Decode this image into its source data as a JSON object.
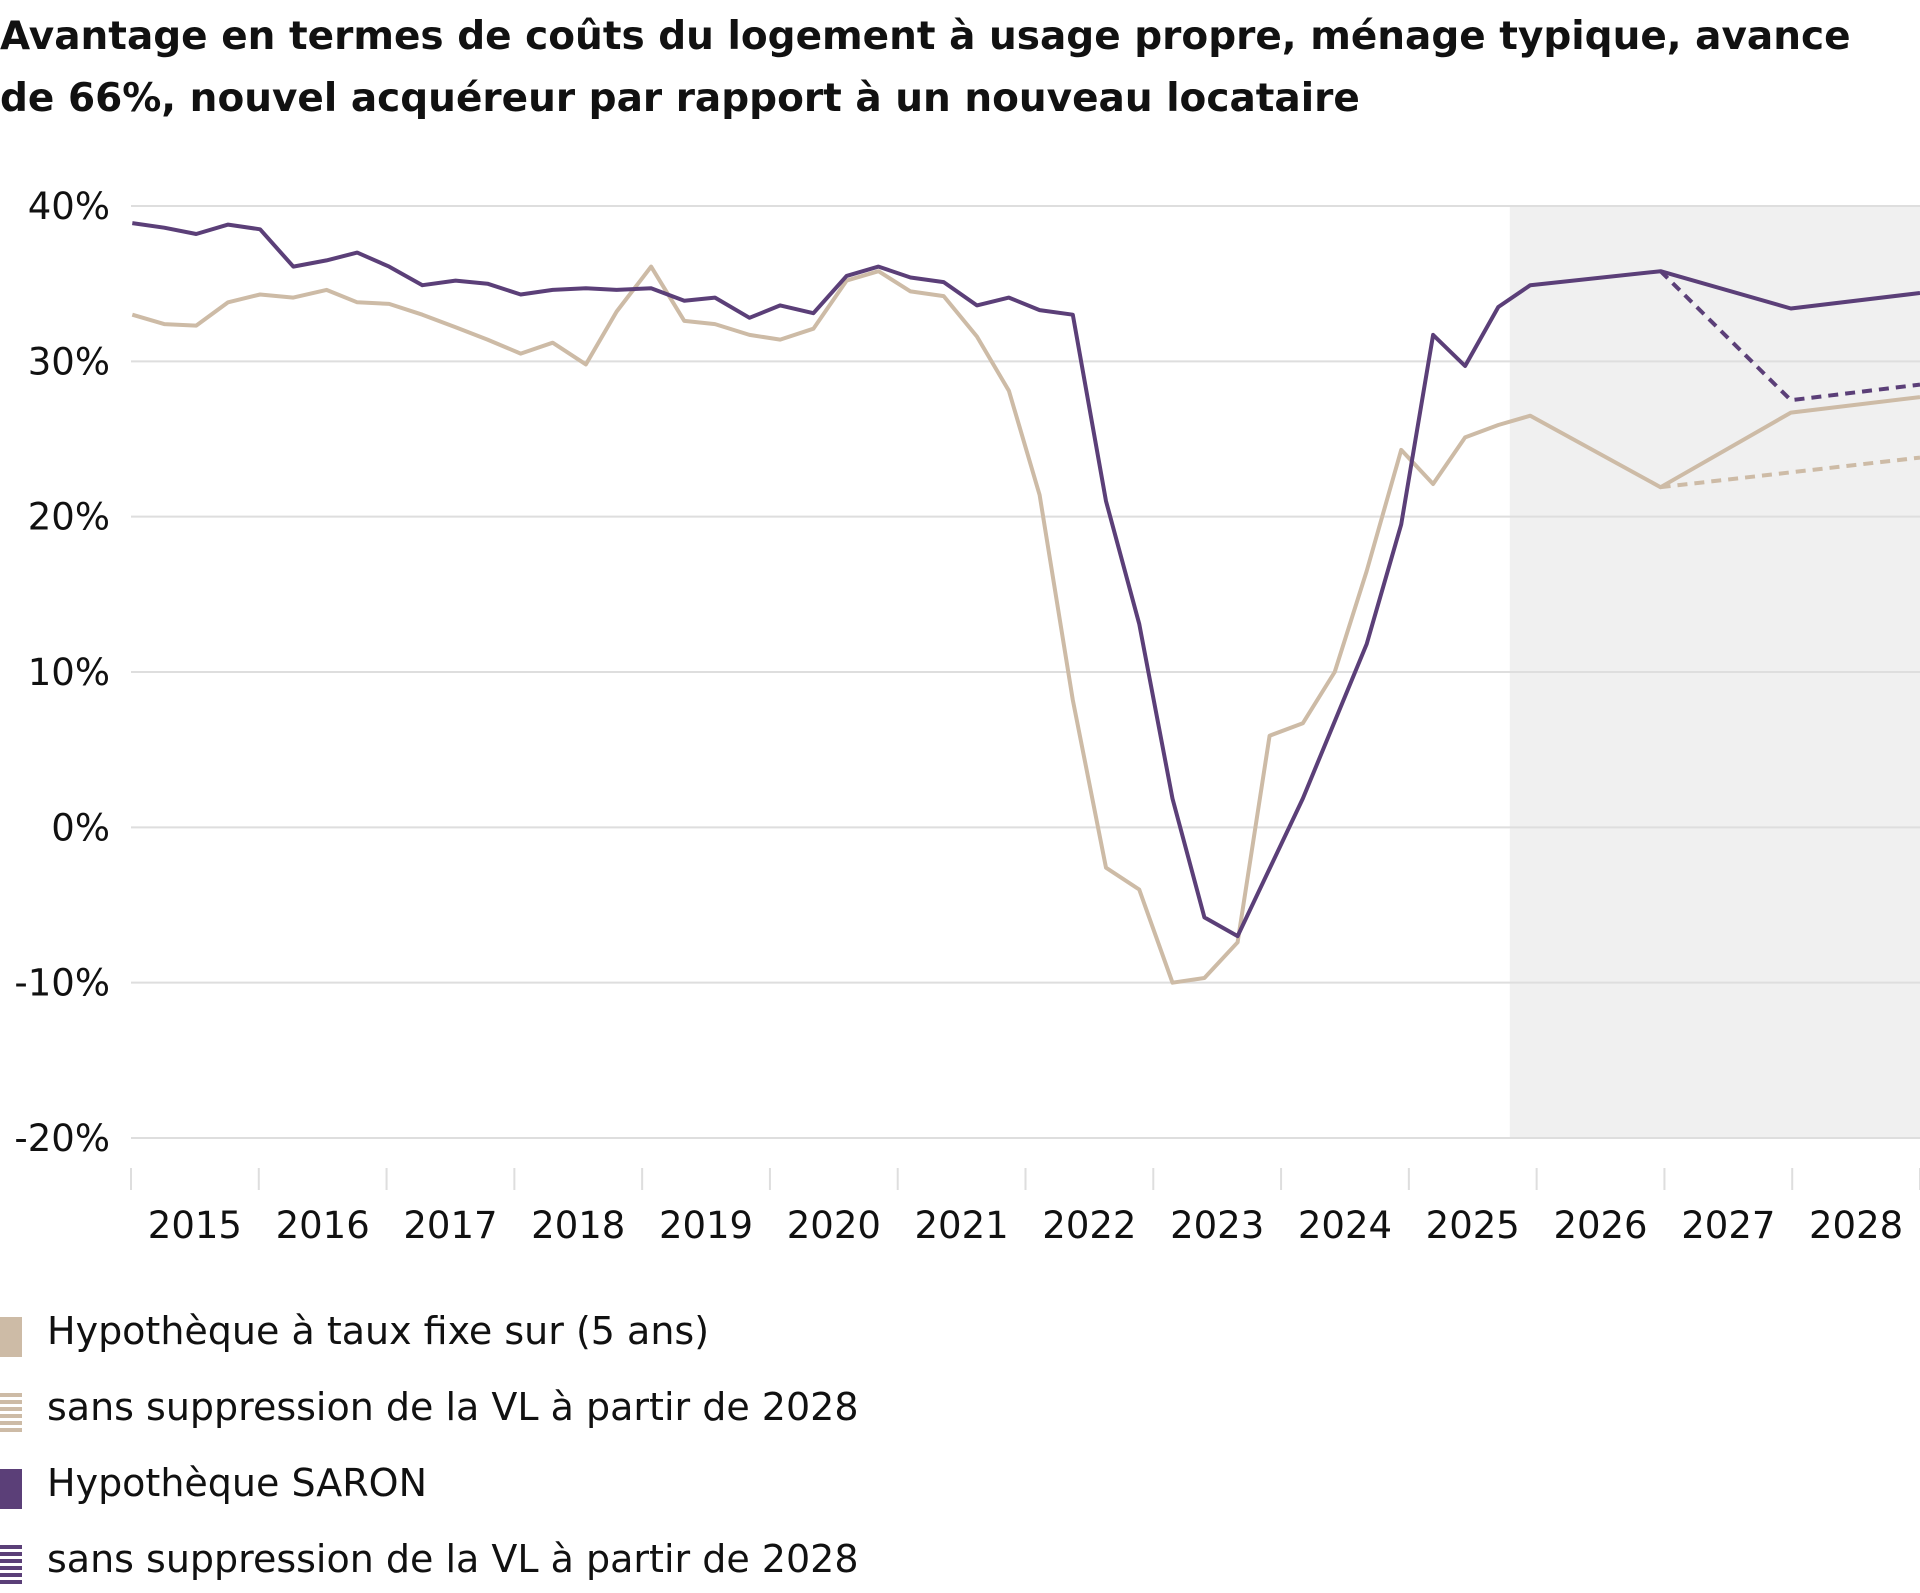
{
  "chart_data": {
    "type": "line",
    "title": "Avantage en termes de coûts du logement à usage propre, ménage typique, avance de 66%, nouvel acquéreur par rapport à un nouveau locataire",
    "xlabel": "",
    "ylabel": "",
    "ylim": [
      -20,
      40
    ],
    "xlim": [
      2015,
      2029
    ],
    "y_ticks": [
      "40%",
      "30%",
      "20%",
      "10%",
      "0%",
      "-10%",
      "-20%"
    ],
    "y_tick_values": [
      40,
      30,
      20,
      10,
      0,
      -10,
      -20
    ],
    "x_tick_labels": [
      "2015",
      "2016",
      "2017",
      "2018",
      "2019",
      "2020",
      "2021",
      "2022",
      "2023",
      "2024",
      "2025",
      "2026",
      "2027",
      "2028"
    ],
    "grid": "horizontal",
    "forecast_shading_from": 2025.79,
    "legend_placement": "bottom",
    "series": [
      {
        "name": "Hypothèque à taux fixe sur (5 ans)",
        "color": "#cdbba6",
        "style": "solid",
        "x": [
          2015.01,
          2015.26,
          2015.51,
          2015.76,
          2016.01,
          2016.27,
          2016.53,
          2016.77,
          2017.02,
          2017.28,
          2017.54,
          2017.79,
          2018.05,
          2018.3,
          2018.56,
          2018.8,
          2019.07,
          2019.33,
          2019.57,
          2019.84,
          2020.08,
          2020.34,
          2020.6,
          2020.85,
          2021.1,
          2021.36,
          2021.62,
          2021.87,
          2022.11,
          2022.37,
          2022.63,
          2022.89,
          2023.15,
          2023.4,
          2023.66,
          2023.91,
          2024.17,
          2024.42,
          2024.67,
          2024.94,
          2025.19,
          2025.44,
          2025.7,
          2025.95,
          2026.97,
          2027.99,
          2029.0
        ],
        "y": [
          33.0,
          32.4,
          32.3,
          33.8,
          34.3,
          34.1,
          34.6,
          33.8,
          33.7,
          33.0,
          32.2,
          31.4,
          30.5,
          31.2,
          29.8,
          33.2,
          36.1,
          32.6,
          32.4,
          31.7,
          31.4,
          32.1,
          35.2,
          35.8,
          34.5,
          34.2,
          31.6,
          28.1,
          21.4,
          8.2,
          -2.6,
          -4.0,
          -10.0,
          -9.7,
          -7.4,
          5.9,
          6.7,
          10.0,
          16.5,
          24.3,
          22.1,
          25.1,
          25.9,
          26.5,
          21.9,
          26.7,
          27.7
        ]
      },
      {
        "name": "sans suppression de la VL à partir de 2028",
        "color": "#cdbba6",
        "style": "dashed",
        "x": [
          2026.97,
          2029.0
        ],
        "y": [
          21.9,
          23.8
        ]
      },
      {
        "name": "Hypothèque SARON",
        "color": "#5b3f78",
        "style": "solid",
        "x": [
          2015.01,
          2015.26,
          2015.51,
          2015.76,
          2016.01,
          2016.27,
          2016.53,
          2016.77,
          2017.02,
          2017.28,
          2017.54,
          2017.79,
          2018.05,
          2018.3,
          2018.56,
          2018.8,
          2019.07,
          2019.33,
          2019.57,
          2019.84,
          2020.08,
          2020.34,
          2020.6,
          2020.85,
          2021.1,
          2021.36,
          2021.62,
          2021.87,
          2022.11,
          2022.37,
          2022.63,
          2022.89,
          2023.15,
          2023.4,
          2023.66,
          2024.17,
          2024.67,
          2024.94,
          2025.19,
          2025.44,
          2025.7,
          2025.95,
          2026.97,
          2027.99,
          2029.0
        ],
        "y": [
          38.9,
          38.6,
          38.2,
          38.8,
          38.5,
          36.1,
          36.5,
          37.0,
          36.1,
          34.9,
          35.2,
          35.0,
          34.3,
          34.6,
          34.7,
          34.6,
          34.7,
          33.9,
          34.1,
          32.8,
          33.6,
          33.1,
          35.5,
          36.1,
          35.4,
          35.1,
          33.6,
          34.1,
          33.3,
          33.0,
          21.0,
          13.1,
          1.85,
          -5.8,
          -7.0,
          1.85,
          11.8,
          19.5,
          31.7,
          29.7,
          33.5,
          34.9,
          35.8,
          33.4,
          34.4
        ]
      },
      {
        "name": "sans suppression de la VL à partir de 2028",
        "color": "#5b3f78",
        "style": "dashed",
        "x": [
          2026.97,
          2027.99,
          2029.0
        ],
        "y": [
          35.8,
          27.5,
          28.5
        ]
      }
    ]
  },
  "legend": [
    {
      "label": "Hypothèque à taux fixe sur (5 ans)",
      "color": "#cdbba6",
      "style": "solid"
    },
    {
      "label": "sans suppression de la VL à partir de 2028",
      "color": "#cdbba6",
      "style": "striped"
    },
    {
      "label": "Hypothèque SARON",
      "color": "#5b3f78",
      "style": "solid"
    },
    {
      "label": "sans suppression de la VL à partir de 2028",
      "color": "#5b3f78",
      "style": "striped"
    }
  ]
}
